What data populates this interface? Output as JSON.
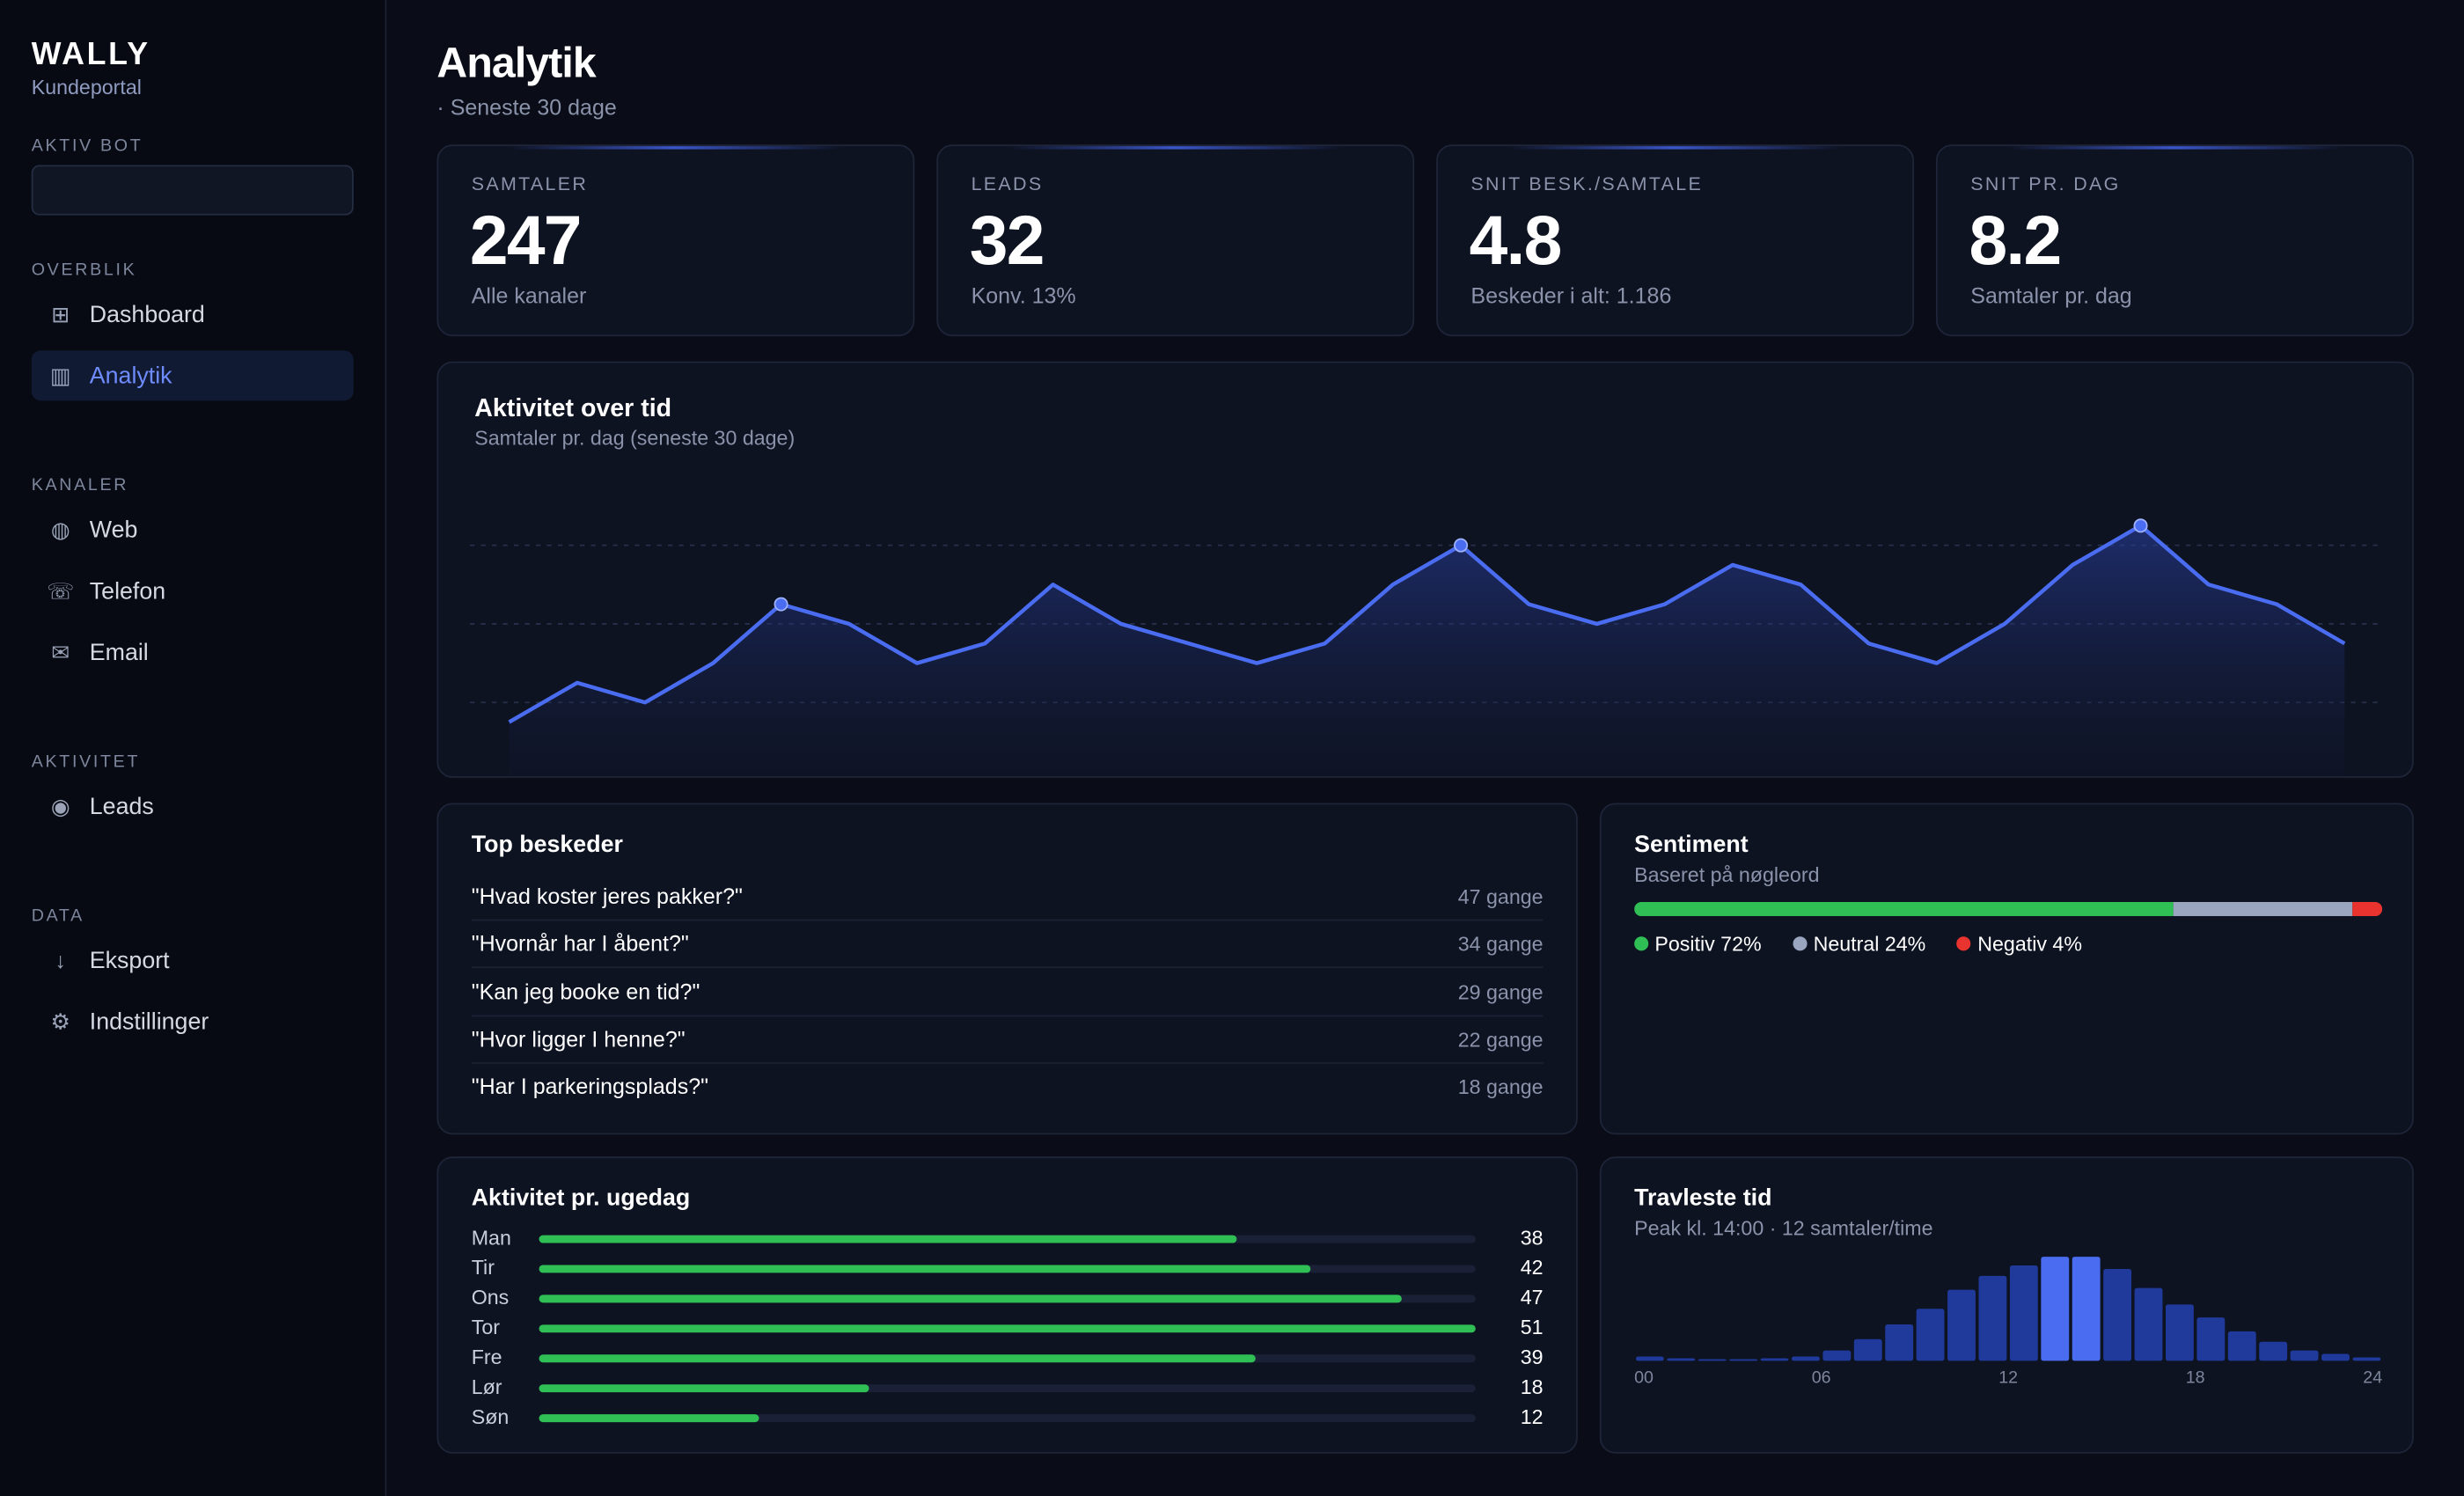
{
  "sidebar": {
    "brand": "WALLY",
    "subtitle": "Kundeportal",
    "bot_label": "AKTIV BOT",
    "sections": [
      {
        "title": "OVERBLIK",
        "items": [
          {
            "icon": "⊞",
            "label": "Dashboard"
          },
          {
            "icon": "▥",
            "label": "Analytik",
            "active": true
          }
        ]
      },
      {
        "title": "KANALER",
        "items": [
          {
            "icon": "◍",
            "label": "Web"
          },
          {
            "icon": "☏",
            "label": "Telefon"
          },
          {
            "icon": "✉",
            "label": "Email"
          }
        ]
      },
      {
        "title": "AKTIVITET",
        "items": [
          {
            "icon": "◉",
            "label": "Leads"
          }
        ]
      },
      {
        "title": "DATA",
        "items": [
          {
            "icon": "↓",
            "label": "Eksport"
          },
          {
            "icon": "⚙",
            "label": "Indstillinger"
          }
        ]
      }
    ]
  },
  "header": {
    "title": "Analytik",
    "subtitle": "· Seneste 30 dage"
  },
  "kpis": [
    {
      "label": "SAMTALER",
      "value": 247,
      "note": "Alle kanaler"
    },
    {
      "label": "LEADS",
      "value": 32,
      "note": "Konv. 13%"
    },
    {
      "label": "SNIT BESK./SAMTALE",
      "value": 4.8,
      "note": "Beskeder i alt: 1.186"
    },
    {
      "label": "SNIT PR. DAG",
      "value": 8.2,
      "note": "Samtaler pr. dag"
    }
  ],
  "activity_chart": {
    "type": "line",
    "title": "Aktivitet over tid",
    "subtitle": "Samtaler pr. dag (seneste 30 dage)",
    "values": [
      3,
      5,
      4,
      6,
      9,
      8,
      6,
      7,
      10,
      8,
      7,
      6,
      7,
      10,
      12,
      9,
      8,
      9,
      11,
      10,
      7,
      6,
      8,
      11,
      13,
      10,
      9,
      7
    ],
    "highlighted": [
      4,
      14,
      24
    ],
    "ylim": [
      0,
      14
    ],
    "yticks": [
      4,
      8,
      12
    ],
    "grid": true,
    "color": "#4a6cf0"
  },
  "top_messages": {
    "title": "Top beskeder",
    "rows": [
      {
        "text": "\"Hvad koster jeres pakker?\"",
        "count": "47 gange"
      },
      {
        "text": "\"Hvornår har I åbent?\"",
        "count": "34 gange"
      },
      {
        "text": "\"Kan jeg booke en tid?\"",
        "count": "29 gange"
      },
      {
        "text": "\"Hvor ligger I henne?\"",
        "count": "22 gange"
      },
      {
        "text": "\"Har I parkeringsplads?\"",
        "count": "18 gange"
      }
    ]
  },
  "sentiment": {
    "title": "Sentiment",
    "subtitle": "Baseret på nøgleord",
    "segments": [
      {
        "label": "Positiv 72%",
        "value": 72,
        "color": "#2fbf55"
      },
      {
        "label": "Neutral 24%",
        "value": 24,
        "color": "#9aa6c0"
      },
      {
        "label": "Negativ 4%",
        "value": 4,
        "color": "#e8332f"
      }
    ]
  },
  "weekday": {
    "type": "bar",
    "title": "Aktivitet pr. ugedag",
    "categories": [
      "Man",
      "Tir",
      "Ons",
      "Tor",
      "Fre",
      "Lør",
      "Søn"
    ],
    "values": [
      38,
      42,
      47,
      51,
      39,
      18,
      12
    ],
    "xlim": [
      0,
      51
    ],
    "color": "#2fbf55"
  },
  "hourly": {
    "type": "bar",
    "title": "Travleste tid",
    "subtitle": "Peak kl. 14:00 · 12 samtaler/time",
    "values": [
      0.5,
      0.3,
      0.2,
      0.2,
      0.3,
      0.5,
      1.2,
      2.5,
      4.2,
      6,
      8.2,
      9.8,
      11,
      12,
      12,
      10.6,
      8.4,
      6.5,
      5,
      3.4,
      2.2,
      1.2,
      0.8,
      0.4
    ],
    "highlight": [
      13,
      14
    ],
    "ylim": [
      0,
      12.5
    ],
    "xticks": [
      {
        "value": 0,
        "label": "00"
      },
      {
        "value": 6,
        "label": "06"
      },
      {
        "value": 12,
        "label": "12"
      },
      {
        "value": 18,
        "label": "18"
      },
      {
        "value": 24,
        "label": "24"
      }
    ],
    "color": "#1f3a9a",
    "highlight_color": "#4a6cf0"
  }
}
